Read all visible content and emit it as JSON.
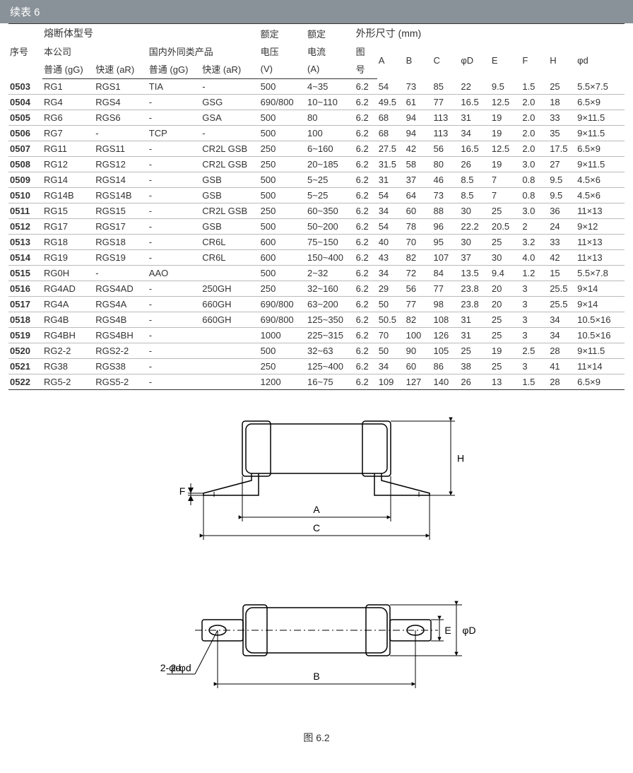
{
  "title": "续表 6",
  "header": {
    "seq": "序号",
    "model_group": "熔断体型号",
    "our_company": "本公司",
    "similar_products": "国内外同类产品",
    "gg": "普通 (gG)",
    "ar": "快速 (aR)",
    "rated_voltage": "额定",
    "voltage_sub": "电压",
    "voltage_unit": "(V)",
    "rated_current": "额定",
    "current_sub": "电流",
    "current_unit": "(A)",
    "dims_group": "外形尺寸 (mm)",
    "fig_no": "图",
    "fig_no2": "号",
    "A": "A",
    "B": "B",
    "C": "C",
    "phiD": "φD",
    "E": "E",
    "F": "F",
    "H": "H",
    "phid": "φd"
  },
  "rows": [
    {
      "seq": "0503",
      "g1": "RG1",
      "g2": "RGS1",
      "g3": "TIA",
      "g4": "-",
      "v": "500",
      "a": "4~35",
      "fig": "6.2",
      "A": "54",
      "B": "73",
      "C": "85",
      "D": "22",
      "E": "9.5",
      "F": "1.5",
      "H": "25",
      "d": "5.5×7.5"
    },
    {
      "seq": "0504",
      "g1": "RG4",
      "g2": "RGS4",
      "g3": "-",
      "g4": "GSG",
      "v": "690/800",
      "a": "10~110",
      "fig": "6.2",
      "A": "49.5",
      "B": "61",
      "C": "77",
      "D": "16.5",
      "E": "12.5",
      "F": "2.0",
      "H": "18",
      "d": "6.5×9"
    },
    {
      "seq": "0505",
      "g1": "RG6",
      "g2": "RGS6",
      "g3": "-",
      "g4": "GSA",
      "v": "500",
      "a": "80",
      "fig": "6.2",
      "A": "68",
      "B": "94",
      "C": "113",
      "D": "31",
      "E": "19",
      "F": "2.0",
      "H": "33",
      "d": "9×11.5"
    },
    {
      "seq": "0506",
      "g1": "RG7",
      "g2": "-",
      "g3": "TCP",
      "g4": "-",
      "v": "500",
      "a": "100",
      "fig": "6.2",
      "A": "68",
      "B": "94",
      "C": "113",
      "D": "34",
      "E": "19",
      "F": "2.0",
      "H": "35",
      "d": "9×11.5"
    },
    {
      "seq": "0507",
      "g1": "RG11",
      "g2": "RGS11",
      "g3": "-",
      "g4": "CR2L GSB",
      "v": "250",
      "a": "6~160",
      "fig": "6.2",
      "A": "27.5",
      "B": "42",
      "C": "56",
      "D": "16.5",
      "E": "12.5",
      "F": "2.0",
      "H": "17.5",
      "d": "6.5×9"
    },
    {
      "seq": "0508",
      "g1": "RG12",
      "g2": "RGS12",
      "g3": "-",
      "g4": "CR2L GSB",
      "v": "250",
      "a": "20~185",
      "fig": "6.2",
      "A": "31.5",
      "B": "58",
      "C": "80",
      "D": "26",
      "E": "19",
      "F": "3.0",
      "H": "27",
      "d": "9×11.5"
    },
    {
      "seq": "0509",
      "g1": "RG14",
      "g2": "RGS14",
      "g3": "-",
      "g4": "GSB",
      "v": "500",
      "a": "5~25",
      "fig": "6.2",
      "A": "31",
      "B": "37",
      "C": "46",
      "D": "8.5",
      "E": "7",
      "F": "0.8",
      "H": "9.5",
      "d": "4.5×6"
    },
    {
      "seq": "0510",
      "g1": "RG14B",
      "g2": "RGS14B",
      "g3": "-",
      "g4": "GSB",
      "v": "500",
      "a": "5~25",
      "fig": "6.2",
      "A": "54",
      "B": "64",
      "C": "73",
      "D": "8.5",
      "E": "7",
      "F": "0.8",
      "H": "9.5",
      "d": "4.5×6"
    },
    {
      "seq": "0511",
      "g1": "RG15",
      "g2": "RGS15",
      "g3": "-",
      "g4": "CR2L GSB",
      "v": "250",
      "a": "60~350",
      "fig": "6.2",
      "A": "34",
      "B": "60",
      "C": "88",
      "D": "30",
      "E": "25",
      "F": "3.0",
      "H": "36",
      "d": "11×13"
    },
    {
      "seq": "0512",
      "g1": "RG17",
      "g2": "RGS17",
      "g3": "-",
      "g4": "GSB",
      "v": "500",
      "a": "50~200",
      "fig": "6.2",
      "A": "54",
      "B": "78",
      "C": "96",
      "D": "22.2",
      "E": "20.5",
      "F": "2",
      "H": "24",
      "d": "9×12"
    },
    {
      "seq": "0513",
      "g1": "RG18",
      "g2": "RGS18",
      "g3": "-",
      "g4": "CR6L",
      "v": "600",
      "a": "75~150",
      "fig": "6.2",
      "A": "40",
      "B": "70",
      "C": "95",
      "D": "30",
      "E": "25",
      "F": "3.2",
      "H": "33",
      "d": "11×13"
    },
    {
      "seq": "0514",
      "g1": "RG19",
      "g2": "RGS19",
      "g3": "-",
      "g4": "CR6L",
      "v": "600",
      "a": "150~400",
      "fig": "6.2",
      "A": "43",
      "B": "82",
      "C": "107",
      "D": "37",
      "E": "30",
      "F": "4.0",
      "H": "42",
      "d": "11×13"
    },
    {
      "seq": "0515",
      "g1": "RG0H",
      "g2": "-",
      "g3": "AAO",
      "g4": "",
      "v": "500",
      "a": "2~32",
      "fig": "6.2",
      "A": "34",
      "B": "72",
      "C": "84",
      "D": "13.5",
      "E": "9.4",
      "F": "1.2",
      "H": "15",
      "d": "5.5×7.8"
    },
    {
      "seq": "0516",
      "g1": "RG4AD",
      "g2": "RGS4AD",
      "g3": "-",
      "g4": "250GH",
      "v": "250",
      "a": "32~160",
      "fig": "6.2",
      "A": "29",
      "B": "56",
      "C": "77",
      "D": "23.8",
      "E": "20",
      "F": "3",
      "H": "25.5",
      "d": "9×14"
    },
    {
      "seq": "0517",
      "g1": "RG4A",
      "g2": "RGS4A",
      "g3": "-",
      "g4": "660GH",
      "v": "690/800",
      "a": "63~200",
      "fig": "6.2",
      "A": "50",
      "B": "77",
      "C": "98",
      "D": "23.8",
      "E": "20",
      "F": "3",
      "H": "25.5",
      "d": "9×14"
    },
    {
      "seq": "0518",
      "g1": "RG4B",
      "g2": "RGS4B",
      "g3": "-",
      "g4": "660GH",
      "v": "690/800",
      "a": "125~350",
      "fig": "6.2",
      "A": "50.5",
      "B": "82",
      "C": "108",
      "D": "31",
      "E": "25",
      "F": "3",
      "H": "34",
      "d": "10.5×16"
    },
    {
      "seq": "0519",
      "g1": "RG4BH",
      "g2": "RGS4BH",
      "g3": "-",
      "g4": "",
      "v": "1000",
      "a": "225~315",
      "fig": "6.2",
      "A": "70",
      "B": "100",
      "C": "126",
      "D": "31",
      "E": "25",
      "F": "3",
      "H": "34",
      "d": "10.5×16"
    },
    {
      "seq": "0520",
      "g1": "RG2-2",
      "g2": "RGS2-2",
      "g3": "-",
      "g4": "",
      "v": "500",
      "a": "32~63",
      "fig": "6.2",
      "A": "50",
      "B": "90",
      "C": "105",
      "D": "25",
      "E": "19",
      "F": "2.5",
      "H": "28",
      "d": "9×11.5"
    },
    {
      "seq": "0521",
      "g1": "RG38",
      "g2": "RGS38",
      "g3": "-",
      "g4": "",
      "v": "250",
      "a": "125~400",
      "fig": "6.2",
      "A": "34",
      "B": "60",
      "C": "86",
      "D": "38",
      "E": "25",
      "F": "3",
      "H": "41",
      "d": "11×14"
    },
    {
      "seq": "0522",
      "g1": "RG5-2",
      "g2": "RGS5-2",
      "g3": "-",
      "g4": "",
      "v": "1200",
      "a": "16~75",
      "fig": "6.2",
      "A": "109",
      "B": "127",
      "C": "140",
      "D": "26",
      "E": "13",
      "F": "1.5",
      "H": "28",
      "d": "6.5×9"
    }
  ],
  "diagram": {
    "caption": "图 6.2",
    "labels": {
      "A": "A",
      "B": "B",
      "C": "C",
      "H": "H",
      "F": "F",
      "E": "E",
      "phiD": "φD",
      "phid": "2-φd"
    },
    "style": {
      "stroke": "#000000",
      "stroke_width": 1.5,
      "thin_stroke_width": 1,
      "arrow_size": 6,
      "font_size": 14
    }
  },
  "colors": {
    "title_bg": "#8a9299",
    "title_fg": "#ffffff",
    "text": "#333333",
    "row_border": "#bbbbbb",
    "strong_border": "#333333",
    "background": "#ffffff"
  }
}
